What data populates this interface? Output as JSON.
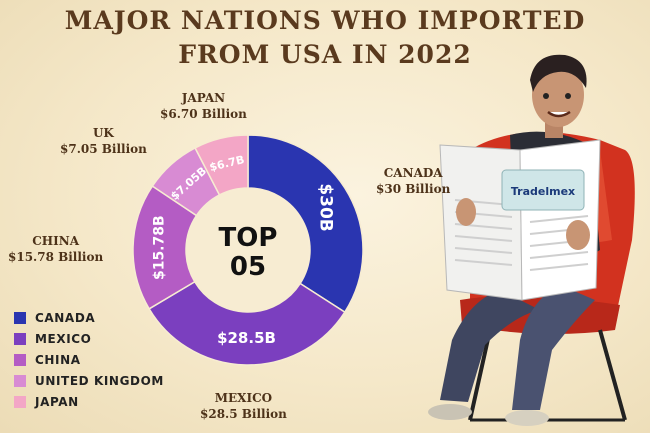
{
  "header": {
    "title_line1": "MAJOR NATIONS WHO IMPORTED",
    "title_line2": "FROM USA IN 2022"
  },
  "colors": {
    "background": "#f5e8c9",
    "title": "#5a3a1e",
    "canada": "#2a35b0",
    "mexico": "#7b3fbf",
    "china": "#b45cc4",
    "uk": "#d88bd3",
    "japan": "#f3a6c6"
  },
  "chart_data": {
    "type": "pie",
    "center_label_line1": "TOP",
    "center_label_line2": "05",
    "unit": "Billion",
    "series": [
      {
        "key": "canada",
        "name": "CANADA",
        "value": 30,
        "segment_label": "$30B",
        "callout_name": "CANADA",
        "callout_value": "$30 Billion"
      },
      {
        "key": "mexico",
        "name": "MEXICO",
        "value": 28.5,
        "segment_label": "$28.5B",
        "callout_name": "MEXICO",
        "callout_value": "$28.5 Billion"
      },
      {
        "key": "china",
        "name": "CHINA",
        "value": 15.78,
        "segment_label": "$15.78B",
        "callout_name": "CHINA",
        "callout_value": "$15.78 Billion"
      },
      {
        "key": "uk",
        "name": "UNITED KINGDOM",
        "value": 7.05,
        "segment_label": "$7.05B",
        "callout_name": "UK",
        "callout_value": "$7.05 Billion"
      },
      {
        "key": "japan",
        "name": "JAPAN",
        "value": 6.7,
        "segment_label": "$6.7B",
        "callout_name": "JAPAN",
        "callout_value": "$6.70 Billion"
      }
    ],
    "legend_position": "bottom-left"
  },
  "illustration": {
    "newspaper_brand": "Tradelmex"
  }
}
